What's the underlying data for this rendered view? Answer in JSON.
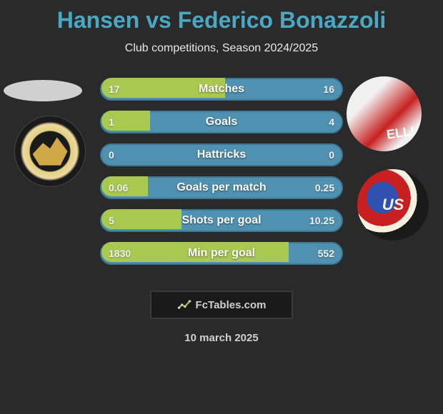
{
  "title": "Hansen vs Federico Bonazzoli",
  "subtitle": "Club competitions, Season 2024/2025",
  "date": "10 march 2025",
  "attribution": "FcTables.com",
  "colors": {
    "background": "#2a2a2a",
    "title": "#4aa8c4",
    "subtitle": "#e8e8e8",
    "bar_bg": "#5090b0",
    "bar_border": "#3a7895",
    "bar_fill": "#a8c850",
    "text": "#f0f0f0",
    "attr_bg": "#1a1a1a"
  },
  "left_player": {
    "name": "Hansen",
    "club_logo_colors": [
      "#e0d080",
      "#f0d8a0",
      "#1a1a1a"
    ]
  },
  "right_player": {
    "name": "Federico Bonazzoli",
    "jersey_text": "ELLI",
    "club_logo_text": "US",
    "club_logo_colors": [
      "#3050b0",
      "#c82020",
      "#f5f0e0"
    ]
  },
  "stats": [
    {
      "label": "Matches",
      "left_val": "17",
      "right_val": "16",
      "left_pct": 51,
      "right_pct": 49
    },
    {
      "label": "Goals",
      "left_val": "1",
      "right_val": "4",
      "left_pct": 20,
      "right_pct": 80
    },
    {
      "label": "Hattricks",
      "left_val": "0",
      "right_val": "0",
      "left_pct": 0,
      "right_pct": 0
    },
    {
      "label": "Goals per match",
      "left_val": "0.06",
      "right_val": "0.25",
      "left_pct": 19,
      "right_pct": 81
    },
    {
      "label": "Shots per goal",
      "left_val": "5",
      "right_val": "10.25",
      "left_pct": 33,
      "right_pct": 67
    },
    {
      "label": "Min per goal",
      "left_val": "1830",
      "right_val": "552",
      "left_pct": 77,
      "right_pct": 23
    }
  ],
  "typography": {
    "title_fontsize": 32,
    "subtitle_fontsize": 16,
    "label_fontsize": 16,
    "value_fontsize": 14
  }
}
